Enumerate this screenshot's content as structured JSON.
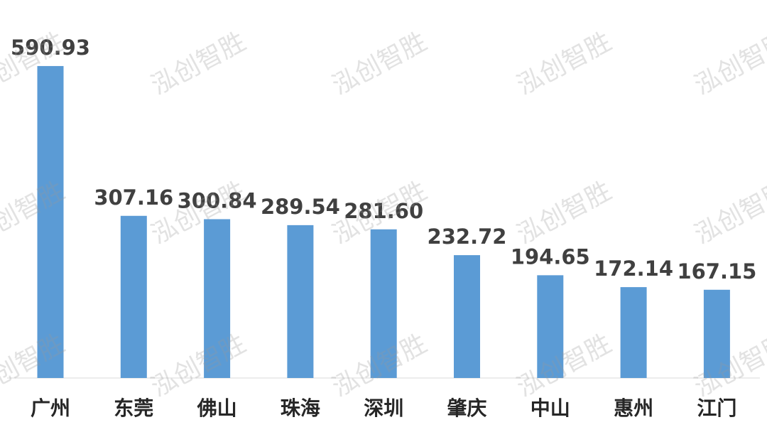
{
  "chart_data": {
    "type": "bar",
    "categories": [
      "广州",
      "东莞",
      "佛山",
      "珠海",
      "深圳",
      "肇庆",
      "中山",
      "惠州",
      "江门"
    ],
    "values": [
      590.93,
      307.16,
      300.84,
      289.54,
      281.6,
      232.72,
      194.65,
      172.14,
      167.15
    ],
    "value_labels": [
      "590.93",
      "307.16",
      "300.84",
      "289.54",
      "281.60",
      "232.72",
      "194.65",
      "172.14",
      "167.15"
    ],
    "color": "#5b9bd5",
    "watermark": "泓创智胜"
  }
}
